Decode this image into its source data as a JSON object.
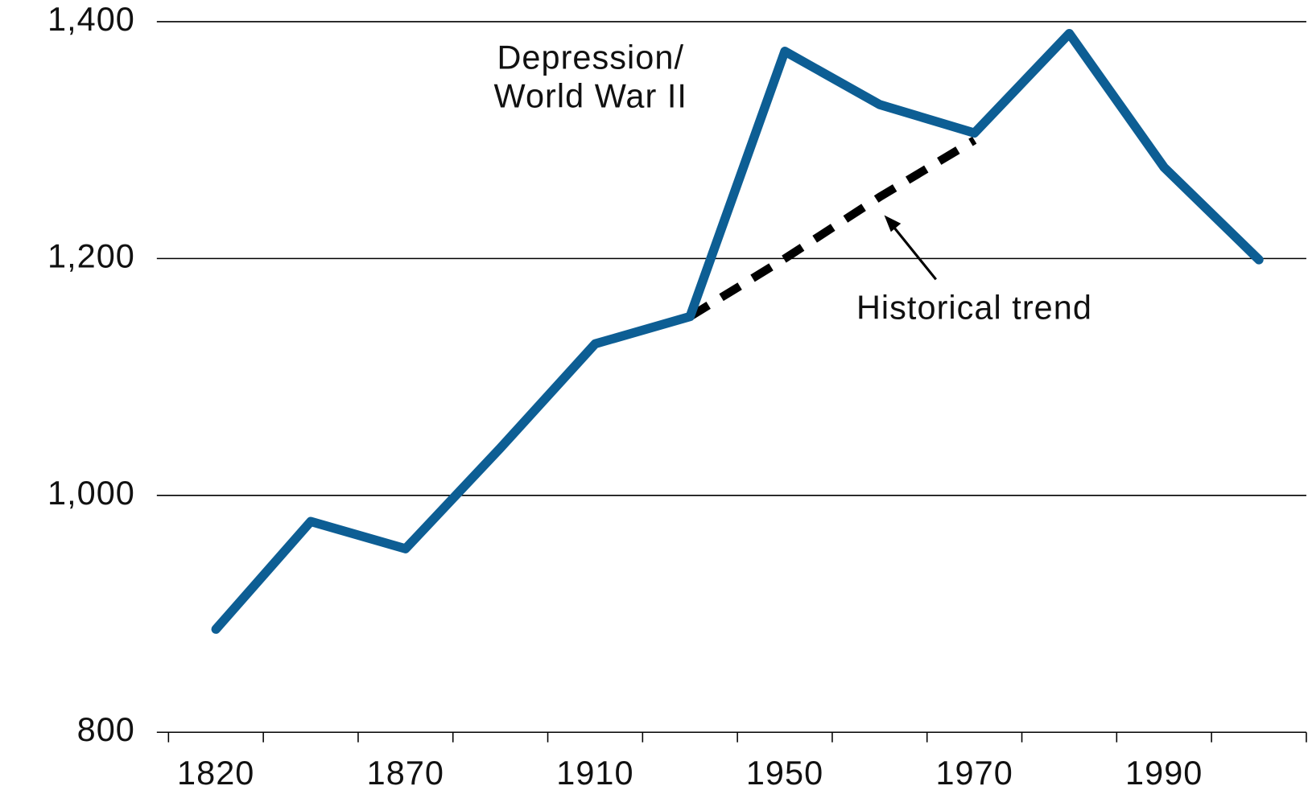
{
  "chart_data": {
    "type": "line",
    "categories": [
      "1820",
      null,
      "1870",
      null,
      "1910",
      null,
      "1950",
      null,
      "1970",
      null,
      "1990",
      null
    ],
    "series": [
      {
        "name": "Depression/World War II line",
        "color": "#0d5e94",
        "values": [
          887,
          978,
          955,
          1040,
          1128,
          1151,
          1375,
          1330,
          1306,
          1390,
          1277,
          1199
        ]
      },
      {
        "name": "Historical trend",
        "color": "#000000",
        "dashed": true,
        "values": [
          null,
          null,
          null,
          null,
          null,
          1151,
          1200,
          1252,
          1300,
          null,
          null,
          null
        ]
      }
    ],
    "annotations": [
      "Depression/",
      "World War II"
    ],
    "ylim": [
      800,
      1400
    ],
    "yticks": [
      800,
      {
        "value": 1000,
        "label": "1,000"
      },
      {
        "value": 1200,
        "label": "1,200"
      },
      {
        "value": 1400,
        "label": "1,400"
      }
    ],
    "grid": true
  }
}
